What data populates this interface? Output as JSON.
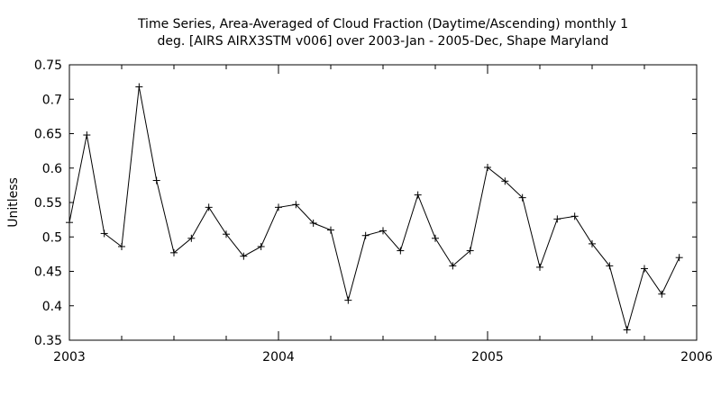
{
  "chart_data": {
    "type": "line",
    "title_lines": [
      "Time Series, Area-Averaged of Cloud Fraction (Daytime/Ascending) monthly 1",
      "deg. [AIRS AIRX3STM v006] over 2003-Jan - 2005-Dec, Shape Maryland"
    ],
    "xlabel": "",
    "ylabel": "Unitless",
    "xlim": [
      "2003-01",
      "2006-01"
    ],
    "ylim": [
      0.35,
      0.75
    ],
    "x_ticks": [
      "2003",
      "2004",
      "2005",
      "2006"
    ],
    "y_ticks": [
      "0.35",
      "0.4",
      "0.45",
      "0.5",
      "0.55",
      "0.6",
      "0.65",
      "0.7",
      "0.75"
    ],
    "grid": false,
    "legend": "none",
    "marker": "plus",
    "color": "#000000",
    "x": [
      "2003-01",
      "2003-02",
      "2003-03",
      "2003-04",
      "2003-05",
      "2003-06",
      "2003-07",
      "2003-08",
      "2003-09",
      "2003-10",
      "2003-11",
      "2003-12",
      "2004-01",
      "2004-02",
      "2004-03",
      "2004-04",
      "2004-05",
      "2004-06",
      "2004-07",
      "2004-08",
      "2004-09",
      "2004-10",
      "2004-11",
      "2004-12",
      "2005-01",
      "2005-02",
      "2005-03",
      "2005-04",
      "2005-05",
      "2005-06",
      "2005-07",
      "2005-08",
      "2005-09",
      "2005-10",
      "2005-11",
      "2005-12"
    ],
    "values": [
      0.521,
      0.648,
      0.505,
      0.486,
      0.718,
      0.582,
      0.477,
      0.498,
      0.543,
      0.504,
      0.472,
      0.486,
      0.543,
      0.547,
      0.52,
      0.51,
      0.408,
      0.502,
      0.509,
      0.48,
      0.561,
      0.498,
      0.458,
      0.48,
      0.601,
      0.581,
      0.557,
      0.456,
      0.526,
      0.53,
      0.49,
      0.458,
      0.365,
      0.454,
      0.417,
      0.47
    ]
  }
}
